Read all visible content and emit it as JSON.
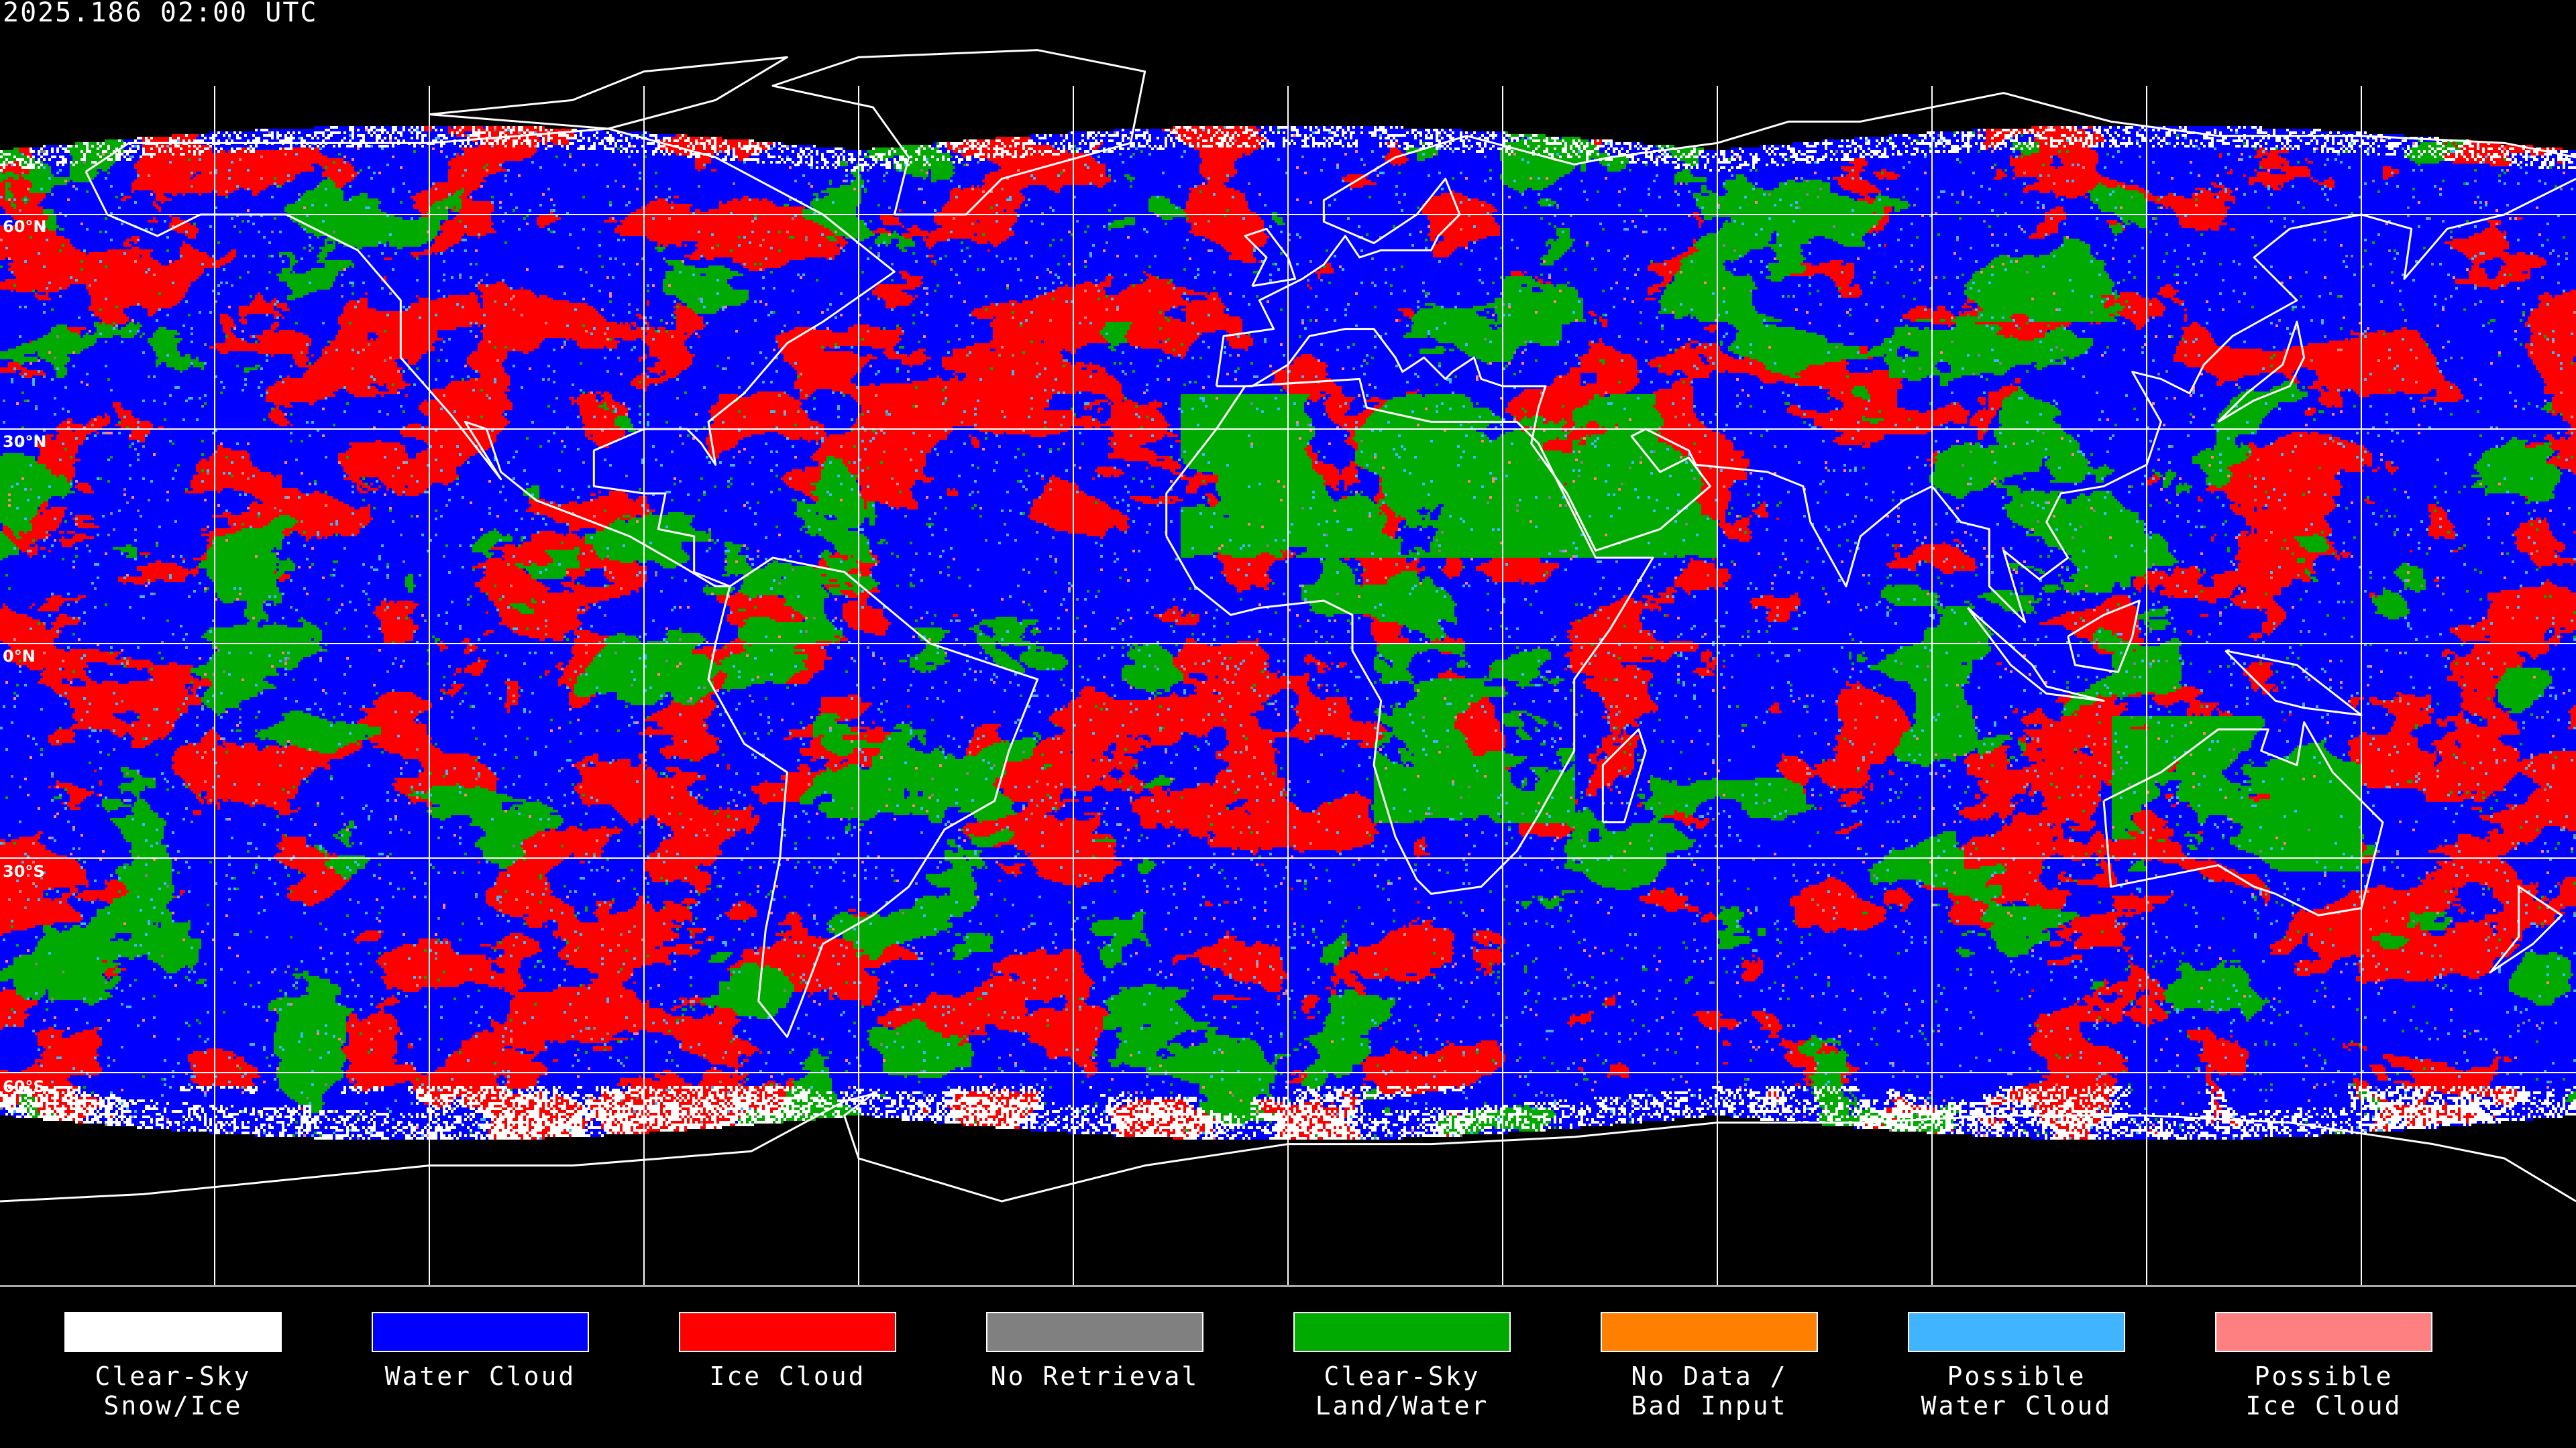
{
  "title": "2025.186 02:00 UTC",
  "lat_labels": [
    "60°N",
    "30°N",
    "0°N",
    "30°S",
    "60°S"
  ],
  "legend": [
    {
      "line1": "Clear-Sky",
      "line2": "Snow/Ice",
      "color": "#ffffff"
    },
    {
      "line1": "Water Cloud",
      "line2": "",
      "color": "#0000ff"
    },
    {
      "line1": "Ice Cloud",
      "line2": "",
      "color": "#ff0000"
    },
    {
      "line1": "No Retrieval",
      "line2": "",
      "color": "#808080"
    },
    {
      "line1": "Clear-Sky",
      "line2": "Land/Water",
      "color": "#00aa00"
    },
    {
      "line1": "No Data /",
      "line2": "Bad Input",
      "color": "#ff8000"
    },
    {
      "line1": "Possible",
      "line2": "Water Cloud",
      "color": "#40b4ff"
    },
    {
      "line1": "Possible",
      "line2": "Ice Cloud",
      "color": "#ff8080"
    }
  ],
  "map": {
    "projection": "equirectangular",
    "gridline_spacing_deg": 30,
    "gridline_color": "#ffffff",
    "coastline_color": "#ffffff",
    "background_color": "#000000"
  }
}
